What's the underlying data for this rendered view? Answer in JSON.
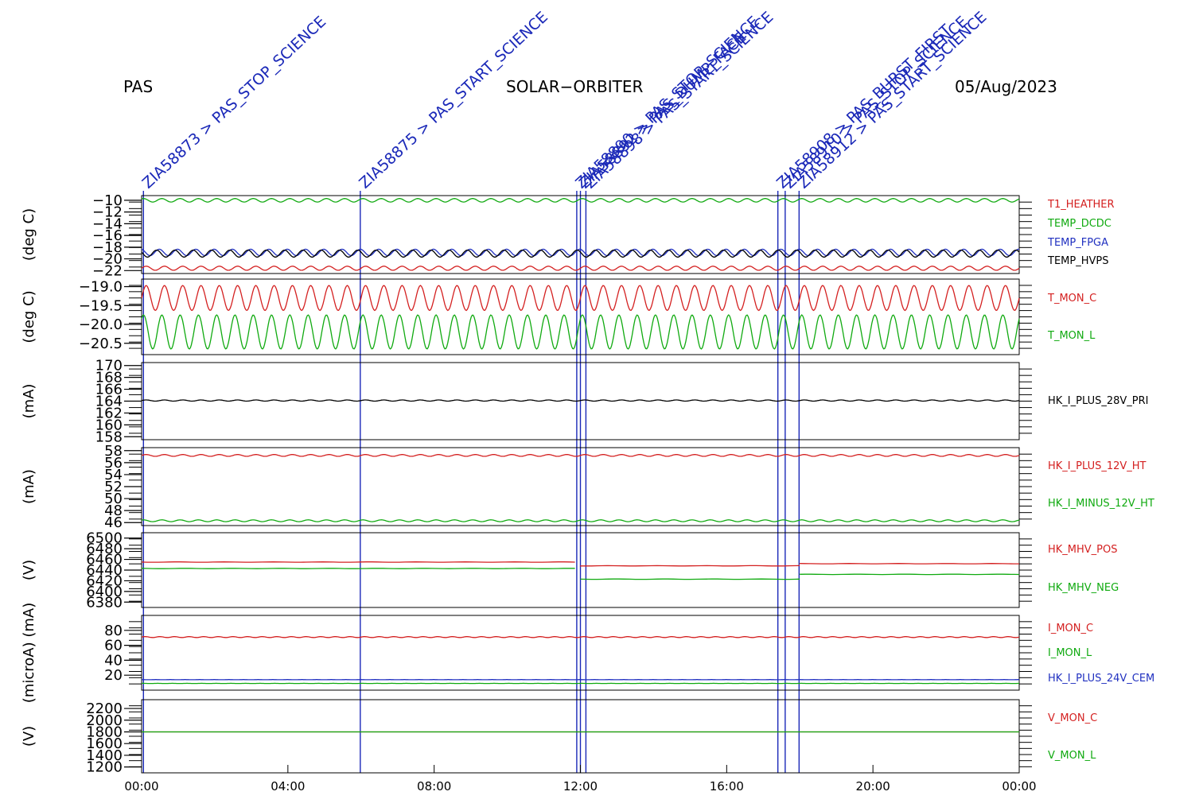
{
  "header": {
    "left": "PAS",
    "center": "SOLAR−ORBITER",
    "right": "05/Aug/2023"
  },
  "colors": {
    "red": "#d42020",
    "green": "#10aa10",
    "blue": "#2030c0",
    "black": "#000000",
    "event": "#1a28b8"
  },
  "events": [
    {
      "time": 0.05,
      "label": "ZIA58873 > PAS_STOP_SCIENCE"
    },
    {
      "time": 5.98,
      "label": "ZIA58875 > PAS_START_SCIENCE"
    },
    {
      "time": 11.9,
      "label": "ZIA58890 > PAS_STOP_SCIENCE"
    },
    {
      "time": 12.0,
      "label": "ZIA58892 > PAS_DUMP_FACE"
    },
    {
      "time": 12.15,
      "label": "ZIA58898 > PAS_START_SCIENCE"
    },
    {
      "time": 17.4,
      "label": "ZIA58908 > PAS_BURST_FIRST"
    },
    {
      "time": 17.6,
      "label": "ZIA58910 > PAS_STOP_SCIENCE"
    },
    {
      "time": 17.98,
      "label": "ZIA58912 > PAS_START_SCIENCE"
    }
  ],
  "chart_data": [
    {
      "type": "line",
      "ylabel": "(deg C)",
      "ylim": [
        -22.5,
        -9.2
      ],
      "ticks": [
        -10,
        -12,
        -14,
        -16,
        -18,
        -20,
        -22
      ],
      "tick_labels": [
        "−10",
        "−12",
        "−14",
        "−16",
        "−18",
        "−20",
        "−22"
      ],
      "series": [
        {
          "name": "T1_HEATHER",
          "color": "#d42020",
          "base": -21.6,
          "amp": 0.35,
          "period": 0.5
        },
        {
          "name": "TEMP_DCDC",
          "color": "#10aa10",
          "base": -10.0,
          "amp": 0.3,
          "period": 0.5
        },
        {
          "name": "TEMP_FPGA",
          "color": "#2030c0",
          "base": -18.9,
          "amp": 0.55,
          "period": 0.5
        },
        {
          "name": "TEMP_HVPS",
          "color": "#000000",
          "base": -19.1,
          "amp": 0.6,
          "period": 0.5
        }
      ]
    },
    {
      "type": "line",
      "ylabel": "(deg C)",
      "ylim": [
        -20.8,
        -18.8
      ],
      "ticks": [
        -19.0,
        -19.5,
        -20.0,
        -20.5
      ],
      "tick_labels": [
        "−19.0",
        "−19.5",
        "−20.0",
        "−20.5"
      ],
      "series": [
        {
          "name": "T_MON_C",
          "color": "#d42020",
          "base": -19.3,
          "amp": 0.33,
          "period": 0.5
        },
        {
          "name": "T_MON_L",
          "color": "#10aa10",
          "base": -20.2,
          "amp": 0.45,
          "period": 0.5
        }
      ]
    },
    {
      "type": "line",
      "ylabel": "(mA)",
      "ylim": [
        157.5,
        170.5
      ],
      "ticks": [
        158,
        160,
        162,
        164,
        166,
        168,
        170
      ],
      "tick_labels": [
        "158",
        "160",
        "162",
        "164",
        "166",
        "168",
        "170"
      ],
      "series": [
        {
          "name": "HK_I_PLUS_28V_PRI",
          "color": "#000000",
          "base": 164.1,
          "amp": 0.1,
          "period": 0.5
        }
      ]
    },
    {
      "type": "line",
      "ylabel": "(mA)",
      "ylim": [
        45.5,
        58.5
      ],
      "ticks": [
        46,
        48,
        50,
        52,
        54,
        56,
        58
      ],
      "tick_labels": [
        "46",
        "48",
        "50",
        "52",
        "54",
        "56",
        "58"
      ],
      "series": [
        {
          "name": "HK_I_PLUS_12V_HT",
          "color": "#d42020",
          "base": 57.2,
          "amp": 0.15,
          "period": 0.5
        },
        {
          "name": "HK_I_MINUS_12V_HT",
          "color": "#10aa10",
          "base": 46.3,
          "amp": 0.15,
          "period": 0.5
        }
      ]
    },
    {
      "type": "line",
      "ylabel": "(V)",
      "ylim": [
        6370,
        6510
      ],
      "ticks": [
        6380,
        6400,
        6420,
        6440,
        6460,
        6480,
        6500
      ],
      "tick_labels": [
        "6380",
        "6400",
        "6420",
        "6440",
        "6460",
        "6480",
        "6500"
      ],
      "series": [
        {
          "name": "HK_MHV_POS",
          "color": "#d42020",
          "segments": [
            [
              0,
              12.0,
              6455
            ],
            [
              12.0,
              18.0,
              6448
            ],
            [
              18.0,
              24,
              6452
            ]
          ]
        },
        {
          "name": "HK_MHV_NEG",
          "color": "#10aa10",
          "segments": [
            [
              0,
              12.0,
              6443
            ],
            [
              12.0,
              18.0,
              6423
            ],
            [
              18.0,
              24,
              6432
            ]
          ]
        }
      ]
    },
    {
      "type": "line",
      "ylabel": "(microA) (mA)",
      "ylim": [
        0,
        100
      ],
      "ticks": [
        20,
        40,
        60,
        80
      ],
      "tick_labels": [
        "20",
        "40",
        "60",
        "80"
      ],
      "series": [
        {
          "name": "I_MON_C",
          "color": "#d42020",
          "base": 71,
          "amp": 0.6,
          "period": 0.4
        },
        {
          "name": "I_MON_L",
          "color": "#10aa10",
          "base": 9,
          "amp": 0.1,
          "period": 0.4
        },
        {
          "name": "HK_I_PLUS_24V_CEM",
          "color": "#2030c0",
          "base": 14,
          "amp": 0.1,
          "period": 0.4
        }
      ]
    },
    {
      "type": "line",
      "ylabel": "(V)",
      "ylim": [
        1100,
        2350
      ],
      "ticks": [
        1200,
        1400,
        1600,
        1800,
        2000,
        2200
      ],
      "tick_labels": [
        "1200",
        "1400",
        "1600",
        "1800",
        "2000",
        "2200"
      ],
      "series": [
        {
          "name": "V_MON_C",
          "color": "#d42020",
          "base": 1800,
          "amp": 0,
          "period": 1
        },
        {
          "name": "V_MON_L",
          "color": "#10aa10",
          "base": 1800,
          "amp": 0,
          "period": 1
        }
      ]
    }
  ],
  "x_axis": {
    "range": [
      0,
      24
    ],
    "ticks": [
      0,
      4,
      8,
      12,
      16,
      20,
      24
    ],
    "tick_labels": [
      "00:00",
      "04:00",
      "08:00",
      "12:00",
      "16:00",
      "20:00",
      "00:00"
    ]
  }
}
